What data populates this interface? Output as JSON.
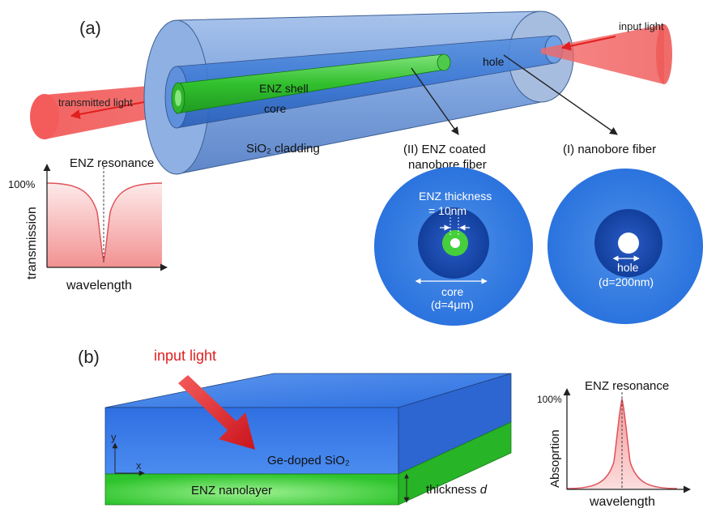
{
  "panel_a": {
    "label": "(a)",
    "input_light": "input light",
    "transmitted_light": "transmitted light",
    "enz_shell": "ENZ shell",
    "core": "core",
    "hole": "hole",
    "cladding": "SiO₂ cladding",
    "enz_resonance": "ENZ resonance",
    "percent_100": "100%",
    "transmission_axis": "transmission",
    "wavelength_axis": "wavelength",
    "enz_fiber_title_1": "(II) ENZ coated",
    "enz_fiber_title_2": "nanobore fiber",
    "nano_fiber_title": "(I) nanobore fiber",
    "enz_thickness_1": "ENZ thickness",
    "enz_thickness_2": "= 10nm",
    "core_label": "core",
    "core_diameter": "(d=4μm)",
    "hole_label": "hole",
    "hole_diameter": "(d=200nm)"
  },
  "panel_b": {
    "label": "(b)",
    "input_light": "input light",
    "ge_doped": "Ge-doped SiO₂",
    "enz_nanolayer": "ENZ nanolayer",
    "thickness_text": "thickness ",
    "thickness_symbol": "d",
    "axis_y": "y",
    "axis_x": "x",
    "enz_resonance": "ENZ resonance",
    "percent_100": "100%",
    "absorption_axis": "Absoprtion",
    "wavelength_axis": "wavelength"
  },
  "colors": {
    "fiber_blue": "#7fa6dc",
    "core_blue": "#3e7fd9",
    "enz_green": "#35c43a",
    "light_red": "#f0433f",
    "dark_blue": "#1c4fb5"
  }
}
